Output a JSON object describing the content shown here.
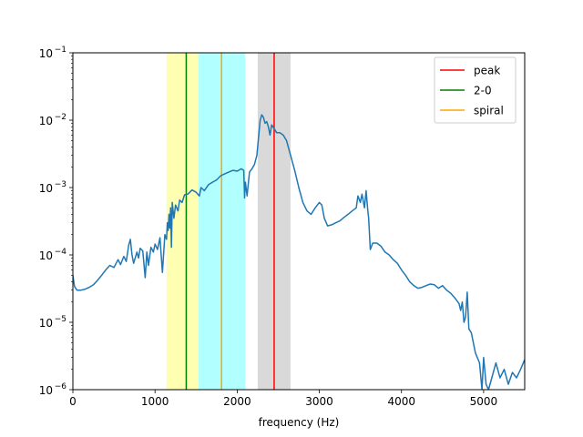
{
  "chart_data": {
    "type": "line",
    "title": "",
    "xlabel": "frequency (Hz)",
    "ylabel": "",
    "xlim": [
      0,
      5500
    ],
    "ylim": [
      1e-06,
      0.1
    ],
    "yscale": "log",
    "grid": false,
    "legend_position": "top-right",
    "x_ticks": [
      {
        "value": 0,
        "label": "0"
      },
      {
        "value": 1000,
        "label": "1000"
      },
      {
        "value": 2000,
        "label": "2000"
      },
      {
        "value": 3000,
        "label": "3000"
      },
      {
        "value": 4000,
        "label": "4000"
      },
      {
        "value": 5000,
        "label": "5000"
      }
    ],
    "y_ticks": [
      {
        "value": 1e-06,
        "base": "10",
        "exp": "−6"
      },
      {
        "value": 1e-05,
        "base": "10",
        "exp": "−5"
      },
      {
        "value": 0.0001,
        "base": "10",
        "exp": "−4"
      },
      {
        "value": 0.001,
        "base": "10",
        "exp": "−3"
      },
      {
        "value": 0.01,
        "base": "10",
        "exp": "−2"
      },
      {
        "value": 0.1,
        "base": "10",
        "exp": "−1"
      }
    ],
    "bands": [
      {
        "x0": 1140,
        "x1": 1530,
        "color": "#ffff00",
        "opacity": 0.3
      },
      {
        "x0": 1530,
        "x1": 2100,
        "color": "#00ffff",
        "opacity": 0.3
      },
      {
        "x0": 2250,
        "x1": 2650,
        "color": "#808080",
        "opacity": 0.3
      }
    ],
    "vlines": [
      {
        "name": "peak",
        "x": 2450,
        "color": "#ff0000"
      },
      {
        "name": "2-0",
        "x": 1380,
        "color": "#008000"
      },
      {
        "name": "spiral",
        "x": 1810,
        "color": "#ffa500"
      }
    ],
    "series": [
      {
        "color": "#1f77b4",
        "points": [
          [
            0,
            5e-05
          ],
          [
            20,
            3.4e-05
          ],
          [
            50,
            3e-05
          ],
          [
            100,
            3e-05
          ],
          [
            150,
            3.1e-05
          ],
          [
            200,
            3.3e-05
          ],
          [
            250,
            3.6e-05
          ],
          [
            300,
            4.2e-05
          ],
          [
            350,
            5e-05
          ],
          [
            400,
            6e-05
          ],
          [
            450,
            7e-05
          ],
          [
            500,
            6.5e-05
          ],
          [
            550,
            8.5e-05
          ],
          [
            580,
            7.2e-05
          ],
          [
            620,
            9.5e-05
          ],
          [
            650,
            8e-05
          ],
          [
            680,
            0.00014
          ],
          [
            700,
            0.00017
          ],
          [
            720,
            0.0001
          ],
          [
            740,
            7.5e-05
          ],
          [
            780,
            0.00011
          ],
          [
            800,
            9e-05
          ],
          [
            820,
            0.000125
          ],
          [
            850,
            0.000115
          ],
          [
            880,
            4.6e-05
          ],
          [
            900,
            0.00011
          ],
          [
            920,
            7e-05
          ],
          [
            950,
            0.00013
          ],
          [
            980,
            0.00011
          ],
          [
            1000,
            0.000145
          ],
          [
            1030,
            0.00012
          ],
          [
            1060,
            0.00018
          ],
          [
            1090,
            5.5e-05
          ],
          [
            1120,
            0.0002
          ],
          [
            1140,
            0.00017
          ],
          [
            1150,
            0.0003
          ],
          [
            1160,
            0.00023
          ],
          [
            1170,
            0.0004
          ],
          [
            1180,
            0.00025
          ],
          [
            1190,
            0.0005
          ],
          [
            1200,
            0.00013
          ],
          [
            1210,
            0.0006
          ],
          [
            1230,
            0.00035
          ],
          [
            1250,
            0.00055
          ],
          [
            1280,
            0.00045
          ],
          [
            1300,
            0.00065
          ],
          [
            1330,
            0.0006
          ],
          [
            1360,
            0.00078
          ],
          [
            1400,
            0.0008
          ],
          [
            1450,
            0.00092
          ],
          [
            1500,
            0.00085
          ],
          [
            1540,
            0.00075
          ],
          [
            1560,
            0.001
          ],
          [
            1600,
            0.0009
          ],
          [
            1650,
            0.0011
          ],
          [
            1700,
            0.0012
          ],
          [
            1750,
            0.0013
          ],
          [
            1800,
            0.0015
          ],
          [
            1850,
            0.0016
          ],
          [
            1900,
            0.0017
          ],
          [
            1950,
            0.0018
          ],
          [
            2000,
            0.00175
          ],
          [
            2050,
            0.0019
          ],
          [
            2080,
            0.0018
          ],
          [
            2090,
            0.0007
          ],
          [
            2100,
            0.0012
          ],
          [
            2120,
            0.00075
          ],
          [
            2150,
            0.0017
          ],
          [
            2180,
            0.0019
          ],
          [
            2210,
            0.0022
          ],
          [
            2240,
            0.003
          ],
          [
            2260,
            0.0055
          ],
          [
            2280,
            0.01
          ],
          [
            2300,
            0.012
          ],
          [
            2320,
            0.011
          ],
          [
            2340,
            0.009
          ],
          [
            2360,
            0.0095
          ],
          [
            2380,
            0.008
          ],
          [
            2400,
            0.006
          ],
          [
            2420,
            0.0085
          ],
          [
            2450,
            0.0075
          ],
          [
            2480,
            0.0065
          ],
          [
            2520,
            0.0065
          ],
          [
            2560,
            0.006
          ],
          [
            2600,
            0.005
          ],
          [
            2650,
            0.003
          ],
          [
            2700,
            0.0018
          ],
          [
            2750,
            0.001
          ],
          [
            2800,
            0.0006
          ],
          [
            2850,
            0.00045
          ],
          [
            2900,
            0.0004
          ],
          [
            2950,
            0.0005
          ],
          [
            3000,
            0.0006
          ],
          [
            3030,
            0.00055
          ],
          [
            3060,
            0.00035
          ],
          [
            3100,
            0.00027
          ],
          [
            3150,
            0.00028
          ],
          [
            3200,
            0.0003
          ],
          [
            3250,
            0.00032
          ],
          [
            3300,
            0.00036
          ],
          [
            3350,
            0.0004
          ],
          [
            3400,
            0.00045
          ],
          [
            3450,
            0.0005
          ],
          [
            3470,
            0.00075
          ],
          [
            3500,
            0.0006
          ],
          [
            3520,
            0.0008
          ],
          [
            3550,
            0.0005
          ],
          [
            3570,
            0.0009
          ],
          [
            3590,
            0.00045
          ],
          [
            3600,
            0.00035
          ],
          [
            3620,
            0.00012
          ],
          [
            3650,
            0.00015
          ],
          [
            3700,
            0.00015
          ],
          [
            3750,
            0.000135
          ],
          [
            3800,
            0.00011
          ],
          [
            3850,
            0.0001
          ],
          [
            3900,
            8.5e-05
          ],
          [
            3950,
            7.5e-05
          ],
          [
            4000,
            6e-05
          ],
          [
            4050,
            5e-05
          ],
          [
            4100,
            4e-05
          ],
          [
            4150,
            3.5e-05
          ],
          [
            4200,
            3.2e-05
          ],
          [
            4250,
            3.3e-05
          ],
          [
            4300,
            3.5e-05
          ],
          [
            4350,
            3.7e-05
          ],
          [
            4400,
            3.6e-05
          ],
          [
            4450,
            3.2e-05
          ],
          [
            4500,
            3.5e-05
          ],
          [
            4550,
            3e-05
          ],
          [
            4600,
            2.7e-05
          ],
          [
            4650,
            2.3e-05
          ],
          [
            4700,
            1.9e-05
          ],
          [
            4720,
            1.5e-05
          ],
          [
            4740,
            2e-05
          ],
          [
            4760,
            1e-05
          ],
          [
            4780,
            1.2e-05
          ],
          [
            4800,
            2.8e-05
          ],
          [
            4820,
            8e-06
          ],
          [
            4850,
            7e-06
          ],
          [
            4900,
            3.5e-06
          ],
          [
            4950,
            2.5e-06
          ],
          [
            4980,
            1e-06
          ],
          [
            5000,
            3e-06
          ],
          [
            5030,
            1.2e-06
          ],
          [
            5060,
            1e-06
          ],
          [
            5100,
            1.5e-06
          ],
          [
            5150,
            2.5e-06
          ],
          [
            5200,
            1.5e-06
          ],
          [
            5250,
            2e-06
          ],
          [
            5300,
            1.2e-06
          ],
          [
            5350,
            1.8e-06
          ],
          [
            5400,
            1.5e-06
          ],
          [
            5450,
            2e-06
          ],
          [
            5500,
            2.8e-06
          ]
        ]
      }
    ],
    "legend": [
      {
        "label": "peak",
        "color": "#ff0000"
      },
      {
        "label": "2-0",
        "color": "#008000"
      },
      {
        "label": "spiral",
        "color": "#ffa500"
      }
    ]
  }
}
